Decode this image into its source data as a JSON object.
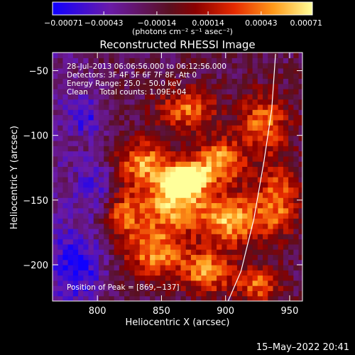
{
  "chart_data": {
    "type": "heatmap",
    "title": "Reconstructed RHESSI Image",
    "xlabel": "Heliocentric X (arcsec)",
    "ylabel": "Heliocentric Y (arcsec)",
    "xlim": [
      765,
      960
    ],
    "ylim": [
      -228,
      -36
    ],
    "x_ticks": [
      800,
      850,
      900,
      950
    ],
    "x_tick_labels": [
      "800",
      "850",
      "900",
      "950"
    ],
    "y_ticks": [
      -50,
      -100,
      -150,
      -200
    ],
    "y_tick_labels": [
      "−50",
      "−100",
      "−150",
      "−200"
    ],
    "colorbar": {
      "ticks": [
        -0.00071,
        -0.00043,
        -0.00014,
        0.00014,
        0.00043,
        0.00071
      ],
      "tick_labels": [
        "−0.00071",
        "−0.00043",
        "−0.00014",
        "0.00014",
        "0.00043",
        "0.00071"
      ],
      "unit_label": "(photons cm⁻² s⁻¹ asec⁻²)",
      "range": [
        -0.00071,
        0.00071
      ]
    },
    "annotations": [
      "28–Jul–2013 06:06:56.000 to 06:12:56.000",
      "Detectors: 3F 4F 5F 6F 7F 8F, Att 0",
      "Energy Range: 25.0 – 50.0 keV",
      "Clean     Total counts: 1.09E+04"
    ],
    "peak_label": "Position of Peak = [869,−137]",
    "peak": [
      869,
      -137
    ],
    "limb_curve": [
      [
        939,
        -37
      ],
      [
        936,
        -80
      ],
      [
        930,
        -120
      ],
      [
        922,
        -165
      ],
      [
        912,
        -205
      ],
      [
        902,
        -228
      ]
    ],
    "blobs": [
      {
        "x": 869,
        "y": -133,
        "sx": 9,
        "sy": 7,
        "a": 1.0
      },
      {
        "x": 860,
        "y": -150,
        "sx": 18,
        "sy": 16,
        "a": 0.55
      },
      {
        "x": 835,
        "y": -120,
        "sx": 14,
        "sy": 12,
        "a": 0.45
      },
      {
        "x": 895,
        "y": -120,
        "sx": 14,
        "sy": 12,
        "a": 0.5
      },
      {
        "x": 905,
        "y": -165,
        "sx": 16,
        "sy": 14,
        "a": 0.5
      },
      {
        "x": 845,
        "y": -190,
        "sx": 16,
        "sy": 14,
        "a": 0.45
      },
      {
        "x": 885,
        "y": -205,
        "sx": 14,
        "sy": 12,
        "a": 0.45
      },
      {
        "x": 930,
        "y": -90,
        "sx": 14,
        "sy": 16,
        "a": 0.4
      },
      {
        "x": 940,
        "y": -150,
        "sx": 12,
        "sy": 20,
        "a": 0.4
      },
      {
        "x": 870,
        "y": -80,
        "sx": 16,
        "sy": 12,
        "a": 0.4
      },
      {
        "x": 820,
        "y": -160,
        "sx": 12,
        "sy": 14,
        "a": 0.35
      },
      {
        "x": 925,
        "y": -215,
        "sx": 12,
        "sy": 10,
        "a": 0.4
      },
      {
        "x": 790,
        "y": -85,
        "sx": 10,
        "sy": 10,
        "a": -0.25
      },
      {
        "x": 785,
        "y": -200,
        "sx": 14,
        "sy": 18,
        "a": -0.3
      },
      {
        "x": 800,
        "y": -140,
        "sx": 12,
        "sy": 16,
        "a": -0.2
      }
    ]
  },
  "footer": {
    "date": "15–May–2022 20:41"
  }
}
